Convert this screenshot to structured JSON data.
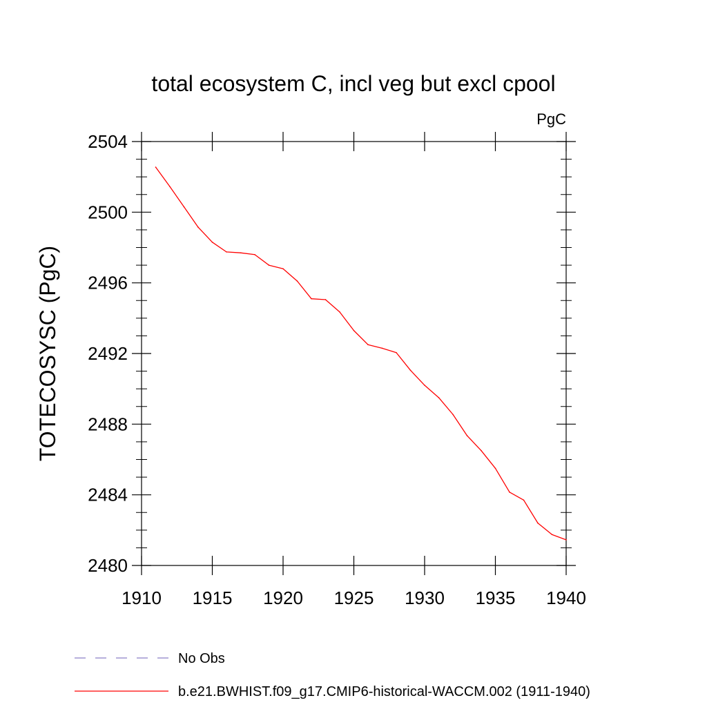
{
  "chart_data": {
    "type": "line",
    "title": "total ecosystem C, incl veg but excl cpool",
    "units_label": "PgC",
    "xlabel": "",
    "ylabel": "TOTECOSYSC  (PgC)",
    "xlim": [
      1910,
      1940
    ],
    "ylim": [
      2480,
      2504
    ],
    "x_ticks": [
      1910,
      1915,
      1920,
      1925,
      1930,
      1935,
      1940
    ],
    "y_ticks": [
      2480,
      2484,
      2488,
      2492,
      2496,
      2500,
      2504
    ],
    "grid": false,
    "legend_placement": "bottom-left",
    "legend": [
      {
        "label": "No Obs",
        "style": "dashed",
        "color": "#8a7fc8"
      },
      {
        "label": "b.e21.BWHIST.f09_g17.CMIP6-historical-WACCM.002 (1911-1940)",
        "style": "solid",
        "color": "#ff0000"
      }
    ],
    "series": [
      {
        "name": "b.e21.BWHIST.f09_g17.CMIP6-historical-WACCM.002 (1911-1940)",
        "color": "#ff0000",
        "x": [
          1911,
          1912,
          1913,
          1914,
          1915,
          1916,
          1917,
          1918,
          1919,
          1920,
          1921,
          1922,
          1923,
          1924,
          1925,
          1926,
          1927,
          1928,
          1929,
          1930,
          1931,
          1932,
          1933,
          1934,
          1935,
          1936,
          1937,
          1938,
          1939,
          1940
        ],
        "values": [
          2502.55,
          2501.45,
          2500.3,
          2499.15,
          2498.3,
          2497.75,
          2497.7,
          2497.6,
          2497.0,
          2496.8,
          2496.1,
          2495.1,
          2495.05,
          2494.35,
          2493.3,
          2492.5,
          2492.3,
          2492.05,
          2491.05,
          2490.2,
          2489.5,
          2488.55,
          2487.35,
          2486.5,
          2485.5,
          2484.15,
          2483.7,
          2482.4,
          2481.75,
          2481.45
        ]
      }
    ]
  }
}
